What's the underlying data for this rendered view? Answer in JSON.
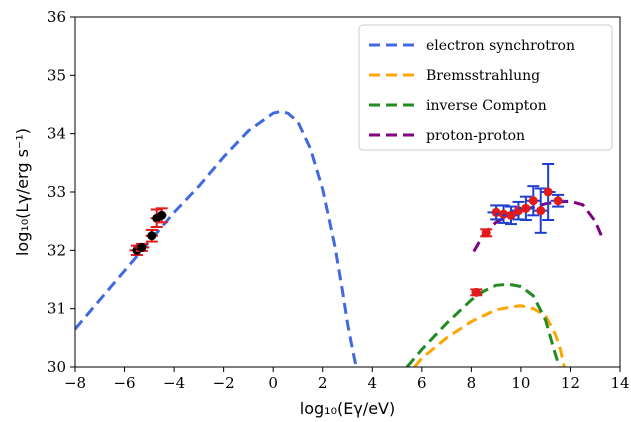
{
  "chart_data": {
    "type": "line",
    "xlabel": "log₁₀(Eγ/eV)",
    "ylabel": "log₁₀(Lγ/erg s⁻¹)",
    "xlim": [
      -8,
      14
    ],
    "ylim": [
      30,
      36
    ],
    "xticks": [
      -8,
      -6,
      -4,
      -2,
      0,
      2,
      4,
      6,
      8,
      10,
      12,
      14
    ],
    "yticks": [
      30,
      31,
      32,
      33,
      34,
      35,
      36
    ],
    "grid": false,
    "legend_position": "top-right",
    "series": [
      {
        "name": "electron synchrotron",
        "style": "dashed",
        "color": "#4169E1",
        "x": [
          -8,
          -7,
          -6,
          -5,
          -4,
          -3,
          -2,
          -1,
          0,
          0.3,
          0.6,
          1,
          1.5,
          2,
          2.5,
          2.8,
          3.0,
          3.2,
          3.35
        ],
        "y": [
          30.65,
          31.15,
          31.65,
          32.15,
          32.65,
          33.1,
          33.6,
          34.05,
          34.35,
          34.38,
          34.35,
          34.2,
          33.75,
          33.05,
          32.05,
          31.3,
          30.75,
          30.3,
          30.0
        ]
      },
      {
        "name": "Bremsstrahlung",
        "style": "dashed",
        "color": "#FFA500",
        "x": [
          5.7,
          6,
          7,
          8,
          9,
          9.5,
          10,
          10.5,
          11,
          11.4,
          11.6,
          11.75
        ],
        "y": [
          30.0,
          30.15,
          30.5,
          30.78,
          30.98,
          31.02,
          31.05,
          31.0,
          30.88,
          30.55,
          30.3,
          30.0
        ]
      },
      {
        "name": "inverse Compton",
        "style": "dashed",
        "color": "#228B22",
        "x": [
          5.4,
          6,
          7,
          8,
          8.5,
          9,
          9.5,
          10,
          10.5,
          11,
          11.3,
          11.55
        ],
        "y": [
          30.0,
          30.3,
          30.75,
          31.15,
          31.3,
          31.4,
          31.42,
          31.38,
          31.22,
          30.8,
          30.35,
          30.0
        ]
      },
      {
        "name": "proton-proton",
        "style": "dashed",
        "color": "#800080",
        "x": [
          8.1,
          8.5,
          9,
          9.5,
          10,
          10.5,
          11,
          11.5,
          12,
          12.5,
          13,
          13.25
        ],
        "y": [
          31.98,
          32.28,
          32.48,
          32.6,
          32.68,
          32.74,
          32.8,
          32.83,
          32.84,
          32.78,
          32.5,
          32.25
        ]
      }
    ],
    "points_black_red": {
      "x": [
        -5.5,
        -5.3,
        -4.9,
        -4.7,
        -4.5
      ],
      "y": [
        32.0,
        32.05,
        32.25,
        32.55,
        32.6
      ],
      "yerr": [
        0.08,
        0.06,
        0.1,
        0.15,
        0.12
      ],
      "xerr": [
        0.3,
        0.3,
        0.25,
        0.25,
        0.2
      ]
    },
    "points_red_red": {
      "x": [
        8.2,
        8.6
      ],
      "y": [
        31.28,
        32.3
      ],
      "yerr": [
        0.05,
        0.06
      ],
      "xerr": [
        0.2,
        0.15
      ]
    },
    "points_red_blue": {
      "x": [
        9.0,
        9.3,
        9.6,
        9.9,
        10.2,
        10.5,
        10.8,
        11.1,
        11.5
      ],
      "y": [
        32.65,
        32.62,
        32.6,
        32.68,
        32.72,
        32.85,
        32.68,
        33.0,
        32.85
      ],
      "yerr": [
        0.12,
        0.15,
        0.15,
        0.15,
        0.2,
        0.25,
        0.38,
        0.48,
        0.1
      ],
      "xerr": [
        0.35,
        0.35,
        0.35,
        0.3,
        0.3,
        0.3,
        0.3,
        0.3,
        0.3
      ]
    }
  }
}
